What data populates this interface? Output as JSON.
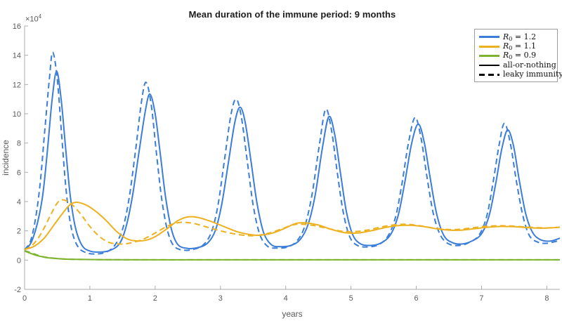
{
  "figure": {
    "title": "Mean duration of the immune period: 9 months"
  },
  "axes": {
    "xlabel": "years",
    "ylabel": "incidence",
    "y_mult_base": "×10",
    "y_mult_exp": "4",
    "axis_color": "#ababab",
    "label_color": "#595959"
  },
  "legend": {
    "items": [
      {
        "var": "R",
        "sub": "0",
        "rest": " = 1.2",
        "color": "#3b7dd8",
        "style": "solid"
      },
      {
        "var": "R",
        "sub": "0",
        "rest": " = 1.1",
        "color": "#edb120",
        "style": "solid"
      },
      {
        "var": "R",
        "sub": "0",
        "rest": " = 0.9",
        "color": "#7db32e",
        "style": "solid"
      },
      {
        "var": "",
        "sub": "",
        "rest": "all-or-nothing",
        "color": "#000000",
        "style": "solid"
      },
      {
        "var": "",
        "sub": "",
        "rest": "leaky immunity",
        "color": "#000000",
        "style": "dashed"
      }
    ]
  },
  "chart_data": {
    "type": "line",
    "title": "Mean duration of the immune period: 9 months",
    "xlabel": "years",
    "ylabel": "incidence",
    "y_unit_multiplier": 10000,
    "xlim": [
      0,
      8.2
    ],
    "ylim": [
      -2,
      16
    ],
    "x_ticks": [
      0,
      1,
      2,
      3,
      4,
      5,
      6,
      7,
      8
    ],
    "y_ticks": [
      -2,
      0,
      2,
      4,
      6,
      8,
      10,
      12,
      14,
      16
    ],
    "grid": false,
    "legend_position": "top-right",
    "series": [
      {
        "id": "r0-1.2-all-or-nothing",
        "name": "R0 = 1.2 (all-or-nothing)",
        "color": "#3b7dd8",
        "style": "solid",
        "points": [
          [
            0,
            0.7
          ],
          [
            0.1,
            1.2
          ],
          [
            0.2,
            2.6
          ],
          [
            0.28,
            4.5
          ],
          [
            0.35,
            7.5
          ],
          [
            0.42,
            10.9
          ],
          [
            0.49,
            12.9
          ],
          [
            0.56,
            11.0
          ],
          [
            0.63,
            7.6
          ],
          [
            0.7,
            4.4
          ],
          [
            0.78,
            2.2
          ],
          [
            0.88,
            1.0
          ],
          [
            1.0,
            0.62
          ],
          [
            1.15,
            0.55
          ],
          [
            1.3,
            0.65
          ],
          [
            1.45,
            1.1
          ],
          [
            1.55,
            2.2
          ],
          [
            1.65,
            4.3
          ],
          [
            1.75,
            7.3
          ],
          [
            1.85,
            10.2
          ],
          [
            1.92,
            11.35
          ],
          [
            2.0,
            10.0
          ],
          [
            2.08,
            7.2
          ],
          [
            2.16,
            4.3
          ],
          [
            2.25,
            2.1
          ],
          [
            2.35,
            1.05
          ],
          [
            2.5,
            0.8
          ],
          [
            2.65,
            0.85
          ],
          [
            2.8,
            1.15
          ],
          [
            2.92,
            2.0
          ],
          [
            3.02,
            3.8
          ],
          [
            3.12,
            6.6
          ],
          [
            3.22,
            9.4
          ],
          [
            3.3,
            10.45
          ],
          [
            3.38,
            9.4
          ],
          [
            3.47,
            6.7
          ],
          [
            3.56,
            3.9
          ],
          [
            3.66,
            1.9
          ],
          [
            3.78,
            1.05
          ],
          [
            3.92,
            0.92
          ],
          [
            4.08,
            1.0
          ],
          [
            4.22,
            1.4
          ],
          [
            4.34,
            2.4
          ],
          [
            4.45,
            4.4
          ],
          [
            4.56,
            7.6
          ],
          [
            4.66,
            9.8
          ],
          [
            4.75,
            8.6
          ],
          [
            4.84,
            5.9
          ],
          [
            4.93,
            3.3
          ],
          [
            5.03,
            1.7
          ],
          [
            5.15,
            1.1
          ],
          [
            5.3,
            1.0
          ],
          [
            5.45,
            1.15
          ],
          [
            5.6,
            1.7
          ],
          [
            5.72,
            3.0
          ],
          [
            5.82,
            5.2
          ],
          [
            5.93,
            8.0
          ],
          [
            6.03,
            9.3
          ],
          [
            6.12,
            8.1
          ],
          [
            6.21,
            5.7
          ],
          [
            6.31,
            3.2
          ],
          [
            6.42,
            1.7
          ],
          [
            6.55,
            1.2
          ],
          [
            6.7,
            1.1
          ],
          [
            6.85,
            1.3
          ],
          [
            7.0,
            1.8
          ],
          [
            7.12,
            3.1
          ],
          [
            7.22,
            5.3
          ],
          [
            7.31,
            7.6
          ],
          [
            7.4,
            8.9
          ],
          [
            7.49,
            7.8
          ],
          [
            7.58,
            5.4
          ],
          [
            7.68,
            3.1
          ],
          [
            7.78,
            1.9
          ],
          [
            7.9,
            1.4
          ],
          [
            8.05,
            1.3
          ],
          [
            8.2,
            1.5
          ]
        ]
      },
      {
        "id": "r0-1.2-leaky",
        "name": "R0 = 1.2 (leaky immunity)",
        "color": "#3b7dd8",
        "style": "dashed",
        "points": [
          [
            0,
            0.72
          ],
          [
            0.09,
            1.3
          ],
          [
            0.17,
            2.9
          ],
          [
            0.24,
            5.3
          ],
          [
            0.31,
            8.9
          ],
          [
            0.38,
            12.4
          ],
          [
            0.43,
            14.2
          ],
          [
            0.5,
            12.4
          ],
          [
            0.57,
            8.4
          ],
          [
            0.64,
            4.6
          ],
          [
            0.72,
            2.1
          ],
          [
            0.82,
            0.9
          ],
          [
            0.95,
            0.5
          ],
          [
            1.1,
            0.42
          ],
          [
            1.25,
            0.55
          ],
          [
            1.38,
            1.0
          ],
          [
            1.5,
            2.1
          ],
          [
            1.6,
            4.2
          ],
          [
            1.7,
            7.5
          ],
          [
            1.79,
            10.8
          ],
          [
            1.86,
            12.15
          ],
          [
            1.94,
            10.6
          ],
          [
            2.02,
            7.3
          ],
          [
            2.1,
            4.2
          ],
          [
            2.19,
            2.0
          ],
          [
            2.29,
            0.95
          ],
          [
            2.44,
            0.68
          ],
          [
            2.6,
            0.75
          ],
          [
            2.74,
            1.05
          ],
          [
            2.86,
            1.9
          ],
          [
            2.96,
            3.7
          ],
          [
            3.06,
            6.8
          ],
          [
            3.16,
            9.9
          ],
          [
            3.24,
            11.0
          ],
          [
            3.32,
            9.8
          ],
          [
            3.41,
            6.8
          ],
          [
            3.5,
            3.8
          ],
          [
            3.6,
            1.8
          ],
          [
            3.72,
            0.95
          ],
          [
            3.87,
            0.82
          ],
          [
            4.03,
            0.9
          ],
          [
            4.17,
            1.3
          ],
          [
            4.29,
            2.3
          ],
          [
            4.4,
            4.4
          ],
          [
            4.51,
            7.7
          ],
          [
            4.61,
            10.3
          ],
          [
            4.7,
            8.9
          ],
          [
            4.79,
            6.0
          ],
          [
            4.88,
            3.3
          ],
          [
            4.98,
            1.6
          ],
          [
            5.1,
            1.0
          ],
          [
            5.26,
            0.9
          ],
          [
            5.42,
            1.05
          ],
          [
            5.56,
            1.6
          ],
          [
            5.68,
            2.9
          ],
          [
            5.78,
            5.2
          ],
          [
            5.88,
            8.0
          ],
          [
            5.98,
            9.75
          ],
          [
            6.07,
            8.4
          ],
          [
            6.16,
            5.8
          ],
          [
            6.26,
            3.2
          ],
          [
            6.37,
            1.7
          ],
          [
            6.5,
            1.1
          ],
          [
            6.66,
            1.0
          ],
          [
            6.81,
            1.2
          ],
          [
            6.96,
            1.7
          ],
          [
            7.08,
            3.0
          ],
          [
            7.18,
            5.4
          ],
          [
            7.27,
            7.9
          ],
          [
            7.35,
            9.35
          ],
          [
            7.44,
            8.0
          ],
          [
            7.53,
            5.5
          ],
          [
            7.63,
            3.1
          ],
          [
            7.73,
            1.7
          ],
          [
            7.85,
            1.25
          ],
          [
            8.0,
            1.15
          ],
          [
            8.2,
            1.35
          ]
        ]
      },
      {
        "id": "r0-1.1-all-or-nothing",
        "name": "R0 = 1.1 (all-or-nothing)",
        "color": "#edb120",
        "style": "solid",
        "points": [
          [
            0,
            0.72
          ],
          [
            0.15,
            0.95
          ],
          [
            0.3,
            1.5
          ],
          [
            0.45,
            2.4
          ],
          [
            0.6,
            3.3
          ],
          [
            0.7,
            3.8
          ],
          [
            0.8,
            3.95
          ],
          [
            0.95,
            3.75
          ],
          [
            1.1,
            3.3
          ],
          [
            1.25,
            2.7
          ],
          [
            1.4,
            2.0
          ],
          [
            1.55,
            1.5
          ],
          [
            1.68,
            1.32
          ],
          [
            1.85,
            1.35
          ],
          [
            2.0,
            1.6
          ],
          [
            2.2,
            2.2
          ],
          [
            2.35,
            2.7
          ],
          [
            2.5,
            2.95
          ],
          [
            2.65,
            2.92
          ],
          [
            2.85,
            2.65
          ],
          [
            3.05,
            2.3
          ],
          [
            3.25,
            1.95
          ],
          [
            3.45,
            1.75
          ],
          [
            3.6,
            1.7
          ],
          [
            3.8,
            1.85
          ],
          [
            4.0,
            2.2
          ],
          [
            4.15,
            2.5
          ],
          [
            4.3,
            2.55
          ],
          [
            4.5,
            2.4
          ],
          [
            4.7,
            2.1
          ],
          [
            4.9,
            1.88
          ],
          [
            5.1,
            1.85
          ],
          [
            5.3,
            2.0
          ],
          [
            5.5,
            2.2
          ],
          [
            5.7,
            2.35
          ],
          [
            5.9,
            2.38
          ],
          [
            6.1,
            2.3
          ],
          [
            6.3,
            2.15
          ],
          [
            6.5,
            2.05
          ],
          [
            6.7,
            2.05
          ],
          [
            6.9,
            2.15
          ],
          [
            7.1,
            2.25
          ],
          [
            7.3,
            2.3
          ],
          [
            7.5,
            2.28
          ],
          [
            7.7,
            2.22
          ],
          [
            7.9,
            2.18
          ],
          [
            8.05,
            2.2
          ],
          [
            8.2,
            2.25
          ]
        ]
      },
      {
        "id": "r0-1.1-leaky",
        "name": "R0 = 1.1 (leaky immunity)",
        "color": "#edb120",
        "style": "dashed",
        "points": [
          [
            0,
            0.72
          ],
          [
            0.1,
            0.95
          ],
          [
            0.2,
            1.45
          ],
          [
            0.3,
            2.2
          ],
          [
            0.4,
            3.1
          ],
          [
            0.5,
            3.9
          ],
          [
            0.58,
            4.12
          ],
          [
            0.7,
            3.9
          ],
          [
            0.85,
            3.2
          ],
          [
            1.0,
            2.3
          ],
          [
            1.15,
            1.6
          ],
          [
            1.3,
            1.2
          ],
          [
            1.45,
            1.1
          ],
          [
            1.6,
            1.15
          ],
          [
            1.8,
            1.4
          ],
          [
            2.0,
            1.85
          ],
          [
            2.2,
            2.35
          ],
          [
            2.35,
            2.55
          ],
          [
            2.45,
            2.58
          ],
          [
            2.6,
            2.5
          ],
          [
            2.8,
            2.25
          ],
          [
            3.0,
            2.0
          ],
          [
            3.2,
            1.8
          ],
          [
            3.4,
            1.68
          ],
          [
            3.55,
            1.68
          ],
          [
            3.75,
            1.85
          ],
          [
            3.95,
            2.15
          ],
          [
            4.1,
            2.4
          ],
          [
            4.25,
            2.45
          ],
          [
            4.45,
            2.35
          ],
          [
            4.65,
            2.15
          ],
          [
            4.85,
            1.98
          ],
          [
            5.05,
            1.95
          ],
          [
            5.25,
            2.05
          ],
          [
            5.45,
            2.25
          ],
          [
            5.65,
            2.4
          ],
          [
            5.85,
            2.45
          ],
          [
            6.05,
            2.35
          ],
          [
            6.25,
            2.2
          ],
          [
            6.45,
            2.1
          ],
          [
            6.65,
            2.1
          ],
          [
            6.85,
            2.2
          ],
          [
            7.05,
            2.3
          ],
          [
            7.25,
            2.35
          ],
          [
            7.45,
            2.33
          ],
          [
            7.65,
            2.27
          ],
          [
            7.85,
            2.22
          ],
          [
            8.0,
            2.2
          ],
          [
            8.2,
            2.25
          ]
        ]
      },
      {
        "id": "r0-0.9-all-or-nothing",
        "name": "R0 = 0.9 (all-or-nothing)",
        "color": "#7db32e",
        "style": "solid",
        "points": [
          [
            0,
            0.62
          ],
          [
            0.1,
            0.45
          ],
          [
            0.2,
            0.3
          ],
          [
            0.3,
            0.2
          ],
          [
            0.45,
            0.12
          ],
          [
            0.6,
            0.07
          ],
          [
            0.8,
            0.05
          ],
          [
            1.2,
            0.03
          ],
          [
            2,
            0.02
          ],
          [
            3,
            0.02
          ],
          [
            4,
            0.02
          ],
          [
            5,
            0.02
          ],
          [
            6,
            0.02
          ],
          [
            7,
            0.02
          ],
          [
            8.2,
            0.02
          ]
        ]
      },
      {
        "id": "r0-0.9-leaky",
        "name": "R0 = 0.9 (leaky immunity)",
        "color": "#7db32e",
        "style": "dashed",
        "points": [
          [
            0,
            0.65
          ],
          [
            0.1,
            0.5
          ],
          [
            0.2,
            0.34
          ],
          [
            0.3,
            0.22
          ],
          [
            0.45,
            0.13
          ],
          [
            0.6,
            0.08
          ],
          [
            0.8,
            0.05
          ],
          [
            1.2,
            0.03
          ],
          [
            2,
            0.02
          ],
          [
            3,
            0.02
          ],
          [
            4,
            0.02
          ],
          [
            5,
            0.02
          ],
          [
            6,
            0.02
          ],
          [
            7,
            0.02
          ],
          [
            8.2,
            0.02
          ]
        ]
      }
    ]
  }
}
